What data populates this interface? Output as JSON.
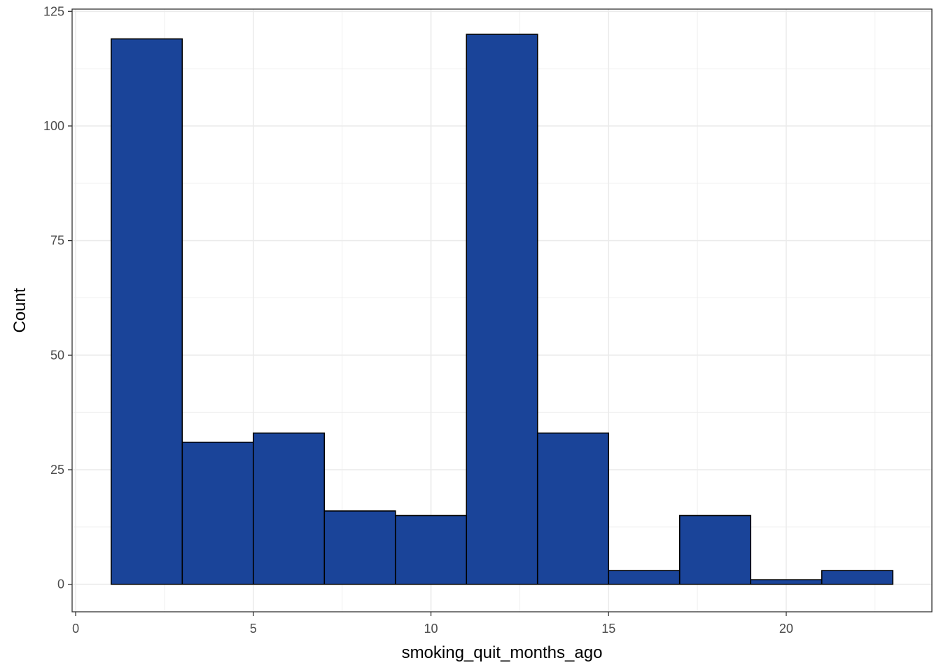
{
  "chart_data": {
    "type": "bar",
    "subtype": "histogram",
    "xlabel": "smoking_quit_months_ago",
    "ylabel": "Count",
    "xlim": [
      -0.1,
      24.1
    ],
    "ylim": [
      -6,
      125.5
    ],
    "x_ticks": [
      0,
      5,
      10,
      15,
      20
    ],
    "y_ticks": [
      0,
      25,
      50,
      75,
      100,
      125
    ],
    "x_minor": [
      2.5,
      7.5,
      12.5,
      17.5,
      22.5
    ],
    "y_minor": [
      12.5,
      37.5,
      62.5,
      87.5,
      112.5
    ],
    "grid": true,
    "bins": [
      {
        "x0": 1,
        "x1": 3,
        "count": 119
      },
      {
        "x0": 3,
        "x1": 5,
        "count": 31
      },
      {
        "x0": 5,
        "x1": 7,
        "count": 33
      },
      {
        "x0": 7,
        "x1": 9,
        "count": 16
      },
      {
        "x0": 9,
        "x1": 11,
        "count": 15
      },
      {
        "x0": 11,
        "x1": 13,
        "count": 120
      },
      {
        "x0": 13,
        "x1": 15,
        "count": 33
      },
      {
        "x0": 15,
        "x1": 17,
        "count": 3
      },
      {
        "x0": 17,
        "x1": 19,
        "count": 15
      },
      {
        "x0": 19,
        "x1": 21,
        "count": 1
      },
      {
        "x0": 21,
        "x1": 23,
        "count": 3
      }
    ],
    "colors": {
      "fill": "#1a4499",
      "outline": "#000000",
      "grid": "#ebebeb",
      "panel_border": "#333333",
      "tick_text": "#4d4d4d"
    }
  }
}
